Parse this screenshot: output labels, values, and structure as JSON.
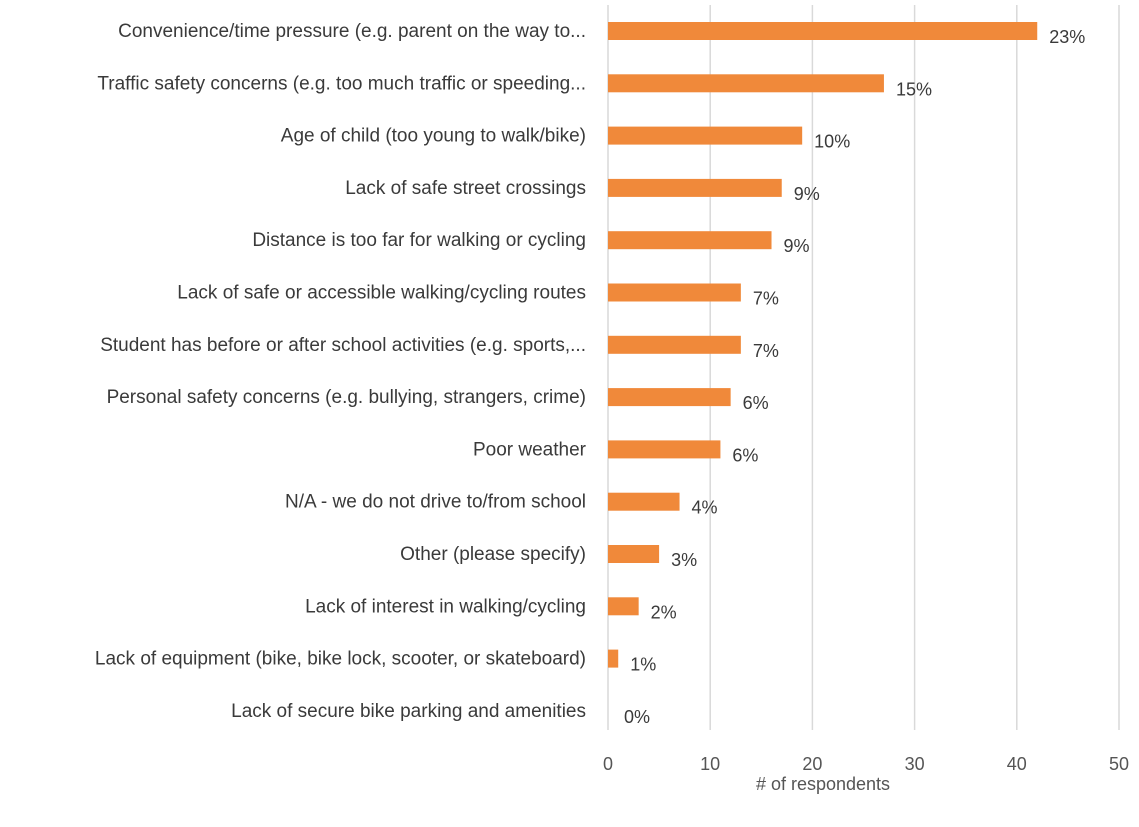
{
  "chart_data": {
    "type": "bar",
    "orientation": "horizontal",
    "title": "",
    "xlabel": "# of respondents",
    "ylabel": "",
    "xlim": [
      0,
      50
    ],
    "x_ticks": [
      0,
      10,
      20,
      30,
      40,
      50
    ],
    "grid": true,
    "legend": "none",
    "bar_color": "#F0893A",
    "grid_color": "#d9d9d9",
    "categories": [
      "Convenience/time pressure (e.g. parent on the way to...",
      "Traffic safety concerns (e.g. too much traffic or speeding...",
      "Age of child (too young to walk/bike)",
      "Lack of safe street crossings",
      "Distance is too far for walking or cycling",
      "Lack of safe or accessible walking/cycling routes",
      "Student has before or after school activities (e.g. sports,...",
      "Personal safety concerns (e.g. bullying, strangers, crime)",
      "Poor weather",
      "N/A - we do not drive to/from school",
      "Other (please specify)",
      "Lack of interest in walking/cycling",
      "Lack of equipment (bike, bike lock, scooter, or skateboard)",
      "Lack of secure bike parking and amenities"
    ],
    "values": [
      42,
      27,
      19,
      17,
      16,
      13,
      13,
      12,
      11,
      7,
      5,
      3,
      1,
      0
    ],
    "data_labels": [
      "23%",
      "15%",
      "10%",
      "9%",
      "9%",
      "7%",
      "7%",
      "6%",
      "6%",
      "4%",
      "3%",
      "2%",
      "1%",
      "0%"
    ]
  }
}
